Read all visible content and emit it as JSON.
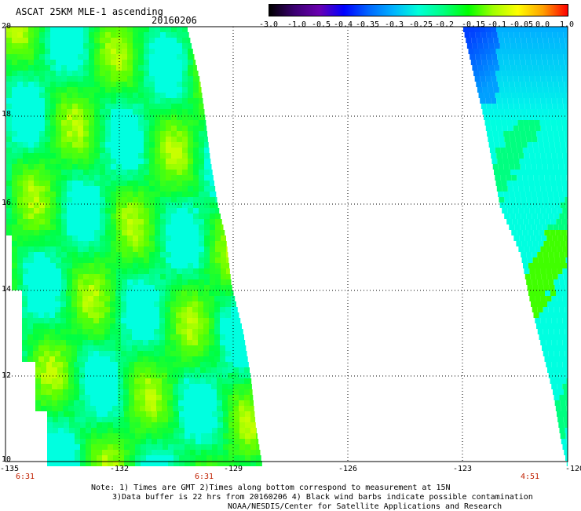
{
  "title": "ASCAT 25KM MLE-1 ascending",
  "date": "20160206",
  "colorbar": {
    "ticks": [
      "-3.0",
      "-1.0",
      "-0.5",
      "-0.4",
      "-0.35",
      "-0.3",
      "-0.25",
      "-0.2",
      "-0.15",
      "-0.1",
      "-0.05",
      "0.0",
      "1.0"
    ],
    "colors": [
      "#000000",
      "#3a0070",
      "#6a00b0",
      "#0000ff",
      "#0066ff",
      "#00b4ff",
      "#00ffd8",
      "#00ff80",
      "#00ff00",
      "#a0ff00",
      "#ffff00",
      "#ffa000",
      "#ff0000"
    ]
  },
  "y_axis": {
    "ticks": [
      "20",
      "18",
      "16",
      "14",
      "12",
      "10"
    ]
  },
  "x_axis": {
    "ticks": [
      "-135",
      "-132",
      "-129",
      "-126",
      "-123",
      "-120"
    ]
  },
  "times": [
    "6:31",
    "6:31",
    "4:51"
  ],
  "notes": [
    "Note: 1) Times are GMT 2)Times along bottom correspond to measurement at 15N",
    "3)Data buffer is 22 hrs from 20160206 4) Black wind barbs indicate possible contamination",
    "NOAA/NESDIS/Center for Satellite Applications and Research"
  ]
}
